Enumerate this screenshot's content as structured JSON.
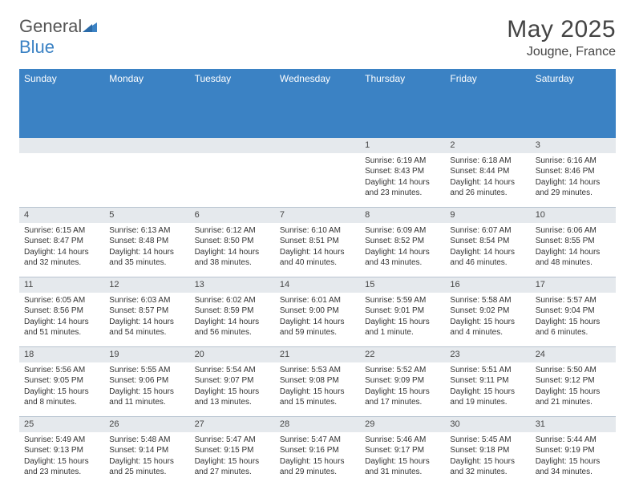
{
  "logo": {
    "text1": "General",
    "text2": "Blue"
  },
  "title": "May 2025",
  "location": "Jougne, France",
  "colors": {
    "header_bg": "#3b82c4",
    "header_text": "#ffffff",
    "daynum_bg": "#e5e9ed",
    "border": "#b8c4d0",
    "text": "#333333"
  },
  "day_names": [
    "Sunday",
    "Monday",
    "Tuesday",
    "Wednesday",
    "Thursday",
    "Friday",
    "Saturday"
  ],
  "weeks": [
    [
      {
        "blank": true
      },
      {
        "blank": true
      },
      {
        "blank": true
      },
      {
        "blank": true
      },
      {
        "n": "1",
        "sr": "6:19 AM",
        "ss": "8:43 PM",
        "dl": "14 hours and 23 minutes."
      },
      {
        "n": "2",
        "sr": "6:18 AM",
        "ss": "8:44 PM",
        "dl": "14 hours and 26 minutes."
      },
      {
        "n": "3",
        "sr": "6:16 AM",
        "ss": "8:46 PM",
        "dl": "14 hours and 29 minutes."
      }
    ],
    [
      {
        "n": "4",
        "sr": "6:15 AM",
        "ss": "8:47 PM",
        "dl": "14 hours and 32 minutes."
      },
      {
        "n": "5",
        "sr": "6:13 AM",
        "ss": "8:48 PM",
        "dl": "14 hours and 35 minutes."
      },
      {
        "n": "6",
        "sr": "6:12 AM",
        "ss": "8:50 PM",
        "dl": "14 hours and 38 minutes."
      },
      {
        "n": "7",
        "sr": "6:10 AM",
        "ss": "8:51 PM",
        "dl": "14 hours and 40 minutes."
      },
      {
        "n": "8",
        "sr": "6:09 AM",
        "ss": "8:52 PM",
        "dl": "14 hours and 43 minutes."
      },
      {
        "n": "9",
        "sr": "6:07 AM",
        "ss": "8:54 PM",
        "dl": "14 hours and 46 minutes."
      },
      {
        "n": "10",
        "sr": "6:06 AM",
        "ss": "8:55 PM",
        "dl": "14 hours and 48 minutes."
      }
    ],
    [
      {
        "n": "11",
        "sr": "6:05 AM",
        "ss": "8:56 PM",
        "dl": "14 hours and 51 minutes."
      },
      {
        "n": "12",
        "sr": "6:03 AM",
        "ss": "8:57 PM",
        "dl": "14 hours and 54 minutes."
      },
      {
        "n": "13",
        "sr": "6:02 AM",
        "ss": "8:59 PM",
        "dl": "14 hours and 56 minutes."
      },
      {
        "n": "14",
        "sr": "6:01 AM",
        "ss": "9:00 PM",
        "dl": "14 hours and 59 minutes."
      },
      {
        "n": "15",
        "sr": "5:59 AM",
        "ss": "9:01 PM",
        "dl": "15 hours and 1 minute."
      },
      {
        "n": "16",
        "sr": "5:58 AM",
        "ss": "9:02 PM",
        "dl": "15 hours and 4 minutes."
      },
      {
        "n": "17",
        "sr": "5:57 AM",
        "ss": "9:04 PM",
        "dl": "15 hours and 6 minutes."
      }
    ],
    [
      {
        "n": "18",
        "sr": "5:56 AM",
        "ss": "9:05 PM",
        "dl": "15 hours and 8 minutes."
      },
      {
        "n": "19",
        "sr": "5:55 AM",
        "ss": "9:06 PM",
        "dl": "15 hours and 11 minutes."
      },
      {
        "n": "20",
        "sr": "5:54 AM",
        "ss": "9:07 PM",
        "dl": "15 hours and 13 minutes."
      },
      {
        "n": "21",
        "sr": "5:53 AM",
        "ss": "9:08 PM",
        "dl": "15 hours and 15 minutes."
      },
      {
        "n": "22",
        "sr": "5:52 AM",
        "ss": "9:09 PM",
        "dl": "15 hours and 17 minutes."
      },
      {
        "n": "23",
        "sr": "5:51 AM",
        "ss": "9:11 PM",
        "dl": "15 hours and 19 minutes."
      },
      {
        "n": "24",
        "sr": "5:50 AM",
        "ss": "9:12 PM",
        "dl": "15 hours and 21 minutes."
      }
    ],
    [
      {
        "n": "25",
        "sr": "5:49 AM",
        "ss": "9:13 PM",
        "dl": "15 hours and 23 minutes."
      },
      {
        "n": "26",
        "sr": "5:48 AM",
        "ss": "9:14 PM",
        "dl": "15 hours and 25 minutes."
      },
      {
        "n": "27",
        "sr": "5:47 AM",
        "ss": "9:15 PM",
        "dl": "15 hours and 27 minutes."
      },
      {
        "n": "28",
        "sr": "5:47 AM",
        "ss": "9:16 PM",
        "dl": "15 hours and 29 minutes."
      },
      {
        "n": "29",
        "sr": "5:46 AM",
        "ss": "9:17 PM",
        "dl": "15 hours and 31 minutes."
      },
      {
        "n": "30",
        "sr": "5:45 AM",
        "ss": "9:18 PM",
        "dl": "15 hours and 32 minutes."
      },
      {
        "n": "31",
        "sr": "5:44 AM",
        "ss": "9:19 PM",
        "dl": "15 hours and 34 minutes."
      }
    ]
  ],
  "labels": {
    "sunrise": "Sunrise: ",
    "sunset": "Sunset: ",
    "daylight": "Daylight: "
  }
}
